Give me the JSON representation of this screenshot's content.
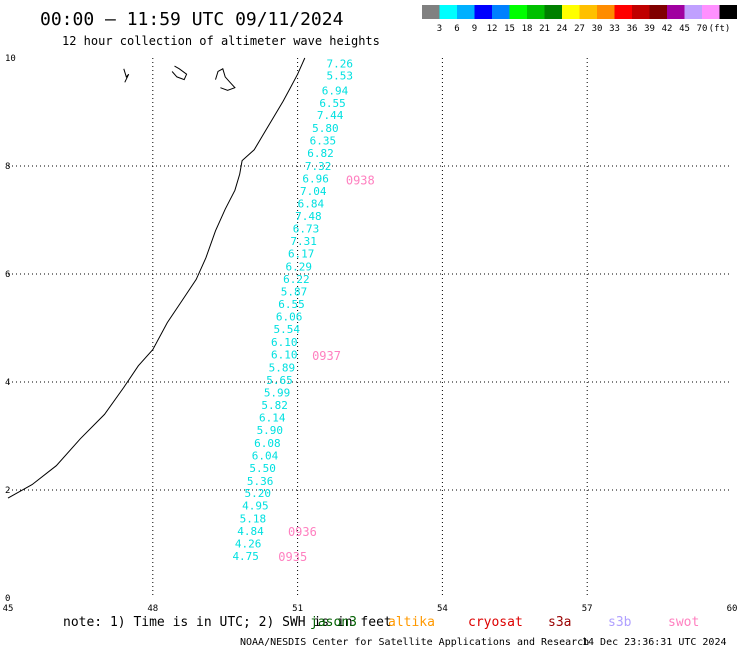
{
  "header": {
    "title": "00:00 — 11:59 UTC 09/11/2024",
    "subtitle": "12 hour collection of altimeter wave heights"
  },
  "colorbar": {
    "colors": [
      "#808080",
      "#00ffff",
      "#00b0ff",
      "#0000ff",
      "#0080ff",
      "#00ff00",
      "#00c000",
      "#008000",
      "#ffff00",
      "#ffc000",
      "#ff8c00",
      "#ff0000",
      "#c00000",
      "#800000",
      "#a000a0",
      "#c0a0ff",
      "#ff90ff",
      "#000000"
    ],
    "labels": [
      "3",
      "6",
      "9",
      "12",
      "15",
      "18",
      "21",
      "24",
      "27",
      "30",
      "33",
      "36",
      "39",
      "42",
      "45",
      "70",
      "(ft)"
    ]
  },
  "map": {
    "x_ticks": [
      "45",
      "48",
      "51",
      "54",
      "57",
      "60"
    ],
    "y_ticks": [
      "0",
      "2",
      "4",
      "6",
      "8",
      "10"
    ],
    "wave_color": "#00e0e0",
    "time_color": "#ff80c0",
    "wave_heights": [
      {
        "v": "7.26",
        "lon": 51.6,
        "lat": 9.9
      },
      {
        "v": "5.53",
        "lon": 51.6,
        "lat": 9.68
      },
      {
        "v": "6.94",
        "lon": 51.5,
        "lat": 9.4
      },
      {
        "v": "6.55",
        "lon": 51.45,
        "lat": 9.17
      },
      {
        "v": "7.44",
        "lon": 51.4,
        "lat": 8.94
      },
      {
        "v": "5.80",
        "lon": 51.3,
        "lat": 8.7
      },
      {
        "v": "6.35",
        "lon": 51.25,
        "lat": 8.47
      },
      {
        "v": "6.82",
        "lon": 51.2,
        "lat": 8.24
      },
      {
        "v": "7.32",
        "lon": 51.15,
        "lat": 8.0
      },
      {
        "v": "6.96",
        "lon": 51.1,
        "lat": 7.77
      },
      {
        "v": "7.04",
        "lon": 51.05,
        "lat": 7.54
      },
      {
        "v": "6.84",
        "lon": 51.0,
        "lat": 7.31
      },
      {
        "v": "7.48",
        "lon": 50.95,
        "lat": 7.07
      },
      {
        "v": "6.73",
        "lon": 50.9,
        "lat": 6.84
      },
      {
        "v": "7.31",
        "lon": 50.85,
        "lat": 6.61
      },
      {
        "v": "6.17",
        "lon": 50.8,
        "lat": 6.38
      },
      {
        "v": "6.29",
        "lon": 50.75,
        "lat": 6.14
      },
      {
        "v": "6.22",
        "lon": 50.7,
        "lat": 5.91
      },
      {
        "v": "5.87",
        "lon": 50.65,
        "lat": 5.68
      },
      {
        "v": "6.55",
        "lon": 50.6,
        "lat": 5.44
      },
      {
        "v": "6.06",
        "lon": 50.55,
        "lat": 5.21
      },
      {
        "v": "5.54",
        "lon": 50.5,
        "lat": 4.98
      },
      {
        "v": "6.10",
        "lon": 50.45,
        "lat": 4.74
      },
      {
        "v": "6.10",
        "lon": 50.45,
        "lat": 4.51
      },
      {
        "v": "5.89",
        "lon": 50.4,
        "lat": 4.27
      },
      {
        "v": "5.65",
        "lon": 50.35,
        "lat": 4.04
      },
      {
        "v": "5.99",
        "lon": 50.3,
        "lat": 3.81
      },
      {
        "v": "5.82",
        "lon": 50.25,
        "lat": 3.57
      },
      {
        "v": "6.14",
        "lon": 50.2,
        "lat": 3.34
      },
      {
        "v": "5.90",
        "lon": 50.15,
        "lat": 3.11
      },
      {
        "v": "6.08",
        "lon": 50.1,
        "lat": 2.87
      },
      {
        "v": "6.04",
        "lon": 50.05,
        "lat": 2.64
      },
      {
        "v": "5.50",
        "lon": 50.0,
        "lat": 2.41
      },
      {
        "v": "5.36",
        "lon": 49.95,
        "lat": 2.17
      },
      {
        "v": "5.20",
        "lon": 49.9,
        "lat": 1.94
      },
      {
        "v": "4.95",
        "lon": 49.85,
        "lat": 1.71
      },
      {
        "v": "5.18",
        "lon": 49.8,
        "lat": 1.47
      },
      {
        "v": "4.84",
        "lon": 49.75,
        "lat": 1.24
      },
      {
        "v": "4.26",
        "lon": 49.7,
        "lat": 1.01
      },
      {
        "v": "4.75",
        "lon": 49.65,
        "lat": 0.78
      }
    ],
    "time_labels": [
      {
        "v": "0938",
        "lon": 52.0,
        "lat": 7.75
      },
      {
        "v": "0937",
        "lon": 51.3,
        "lat": 4.5
      },
      {
        "v": "0936",
        "lon": 50.8,
        "lat": 1.24
      },
      {
        "v": "0935",
        "lon": 50.6,
        "lat": 0.78
      }
    ],
    "coastline": [
      [
        45.0,
        1.85
      ],
      [
        45.5,
        2.1
      ],
      [
        46.0,
        2.45
      ],
      [
        46.5,
        2.95
      ],
      [
        47.0,
        3.4
      ],
      [
        47.4,
        3.9
      ],
      [
        47.7,
        4.3
      ],
      [
        48.0,
        4.6
      ],
      [
        48.3,
        5.1
      ],
      [
        48.6,
        5.5
      ],
      [
        48.9,
        5.9
      ],
      [
        49.1,
        6.3
      ],
      [
        49.3,
        6.8
      ],
      [
        49.5,
        7.2
      ],
      [
        49.7,
        7.55
      ],
      [
        49.8,
        7.85
      ],
      [
        49.85,
        8.1
      ],
      [
        50.1,
        8.3
      ],
      [
        50.3,
        8.6
      ],
      [
        50.5,
        8.9
      ],
      [
        50.7,
        9.2
      ],
      [
        50.85,
        9.45
      ],
      [
        51.0,
        9.7
      ],
      [
        51.1,
        9.9
      ],
      [
        51.15,
        10.0
      ]
    ],
    "islands": [
      [
        [
          47.4,
          9.8
        ],
        [
          47.45,
          9.65
        ],
        [
          47.5,
          9.7
        ],
        [
          47.42,
          9.55
        ]
      ],
      [
        [
          48.4,
          9.75
        ],
        [
          48.5,
          9.65
        ],
        [
          48.65,
          9.6
        ],
        [
          48.7,
          9.7
        ],
        [
          48.55,
          9.8
        ],
        [
          48.45,
          9.85
        ]
      ],
      [
        [
          49.3,
          9.6
        ],
        [
          49.35,
          9.75
        ],
        [
          49.45,
          9.8
        ],
        [
          49.5,
          9.65
        ],
        [
          49.6,
          9.55
        ],
        [
          49.7,
          9.45
        ],
        [
          49.55,
          9.4
        ],
        [
          49.4,
          9.45
        ]
      ]
    ]
  },
  "footer": {
    "note": "note: 1) Time is in UTC; 2) SWH is in feet",
    "satellites": [
      {
        "name": "jason3",
        "color": "#006000"
      },
      {
        "name": "altika",
        "color": "#ff9900"
      },
      {
        "name": "cryosat",
        "color": "#dd0000"
      },
      {
        "name": "s3a",
        "color": "#990000"
      },
      {
        "name": "s3b",
        "color": "#b0a0ff"
      },
      {
        "name": "swot",
        "color": "#ff80c0"
      }
    ],
    "credit": "NOAA/NESDIS Center for Satellite Applications and Research",
    "timestamp": "14 Dec 23:36:31 UTC 2024"
  }
}
